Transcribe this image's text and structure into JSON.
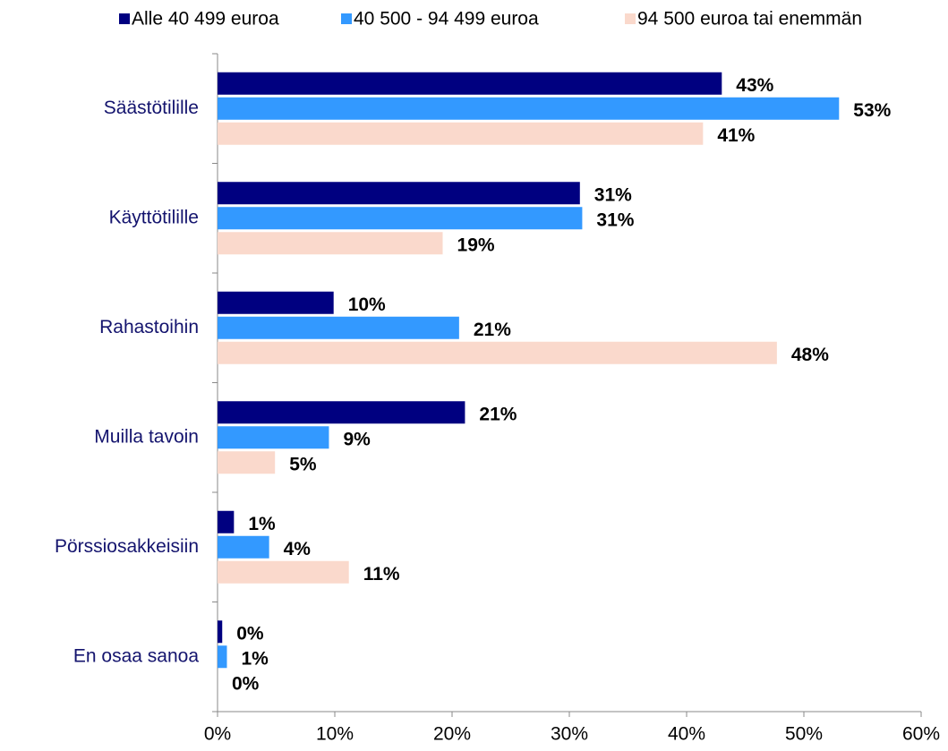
{
  "chart_data": {
    "type": "bar",
    "orientation": "horizontal",
    "categories": [
      "Säästötilille",
      "Käyttötilille",
      "Rahastoihin",
      "Muilla tavoin",
      "Pörssiosakkeisiin",
      "En osaa sanoa"
    ],
    "series": [
      {
        "name": "Alle 40 499 euroa",
        "color": "#000080",
        "values": [
          43.0,
          30.9,
          9.9,
          21.1,
          1.4,
          0.4
        ],
        "value_labels": [
          "43%",
          "31%",
          "10%",
          "21%",
          "1%",
          "0%"
        ]
      },
      {
        "name": "40 500 - 94 499 euroa",
        "color": "#3399ff",
        "values": [
          53.0,
          31.1,
          20.6,
          9.5,
          4.4,
          0.8
        ],
        "value_labels": [
          "53%",
          "31%",
          "21%",
          "9%",
          "4%",
          "1%"
        ]
      },
      {
        "name": "94 500 euroa tai enemmän",
        "color": "#fad9cc",
        "values": [
          41.4,
          19.2,
          47.7,
          4.9,
          11.2,
          0
        ],
        "value_labels": [
          "41%",
          "19%",
          "48%",
          "5%",
          "11%",
          "0%"
        ]
      }
    ],
    "xlim": [
      0,
      60
    ],
    "xticks": [
      {
        "value": 0,
        "label": "0%"
      },
      {
        "value": 10,
        "label": "10%"
      },
      {
        "value": 20,
        "label": "20%"
      },
      {
        "value": 30,
        "label": "30%"
      },
      {
        "value": 40,
        "label": "40%"
      },
      {
        "value": 50,
        "label": "50%"
      },
      {
        "value": 60,
        "label": "60%"
      }
    ],
    "legend": "top",
    "grid": false
  }
}
